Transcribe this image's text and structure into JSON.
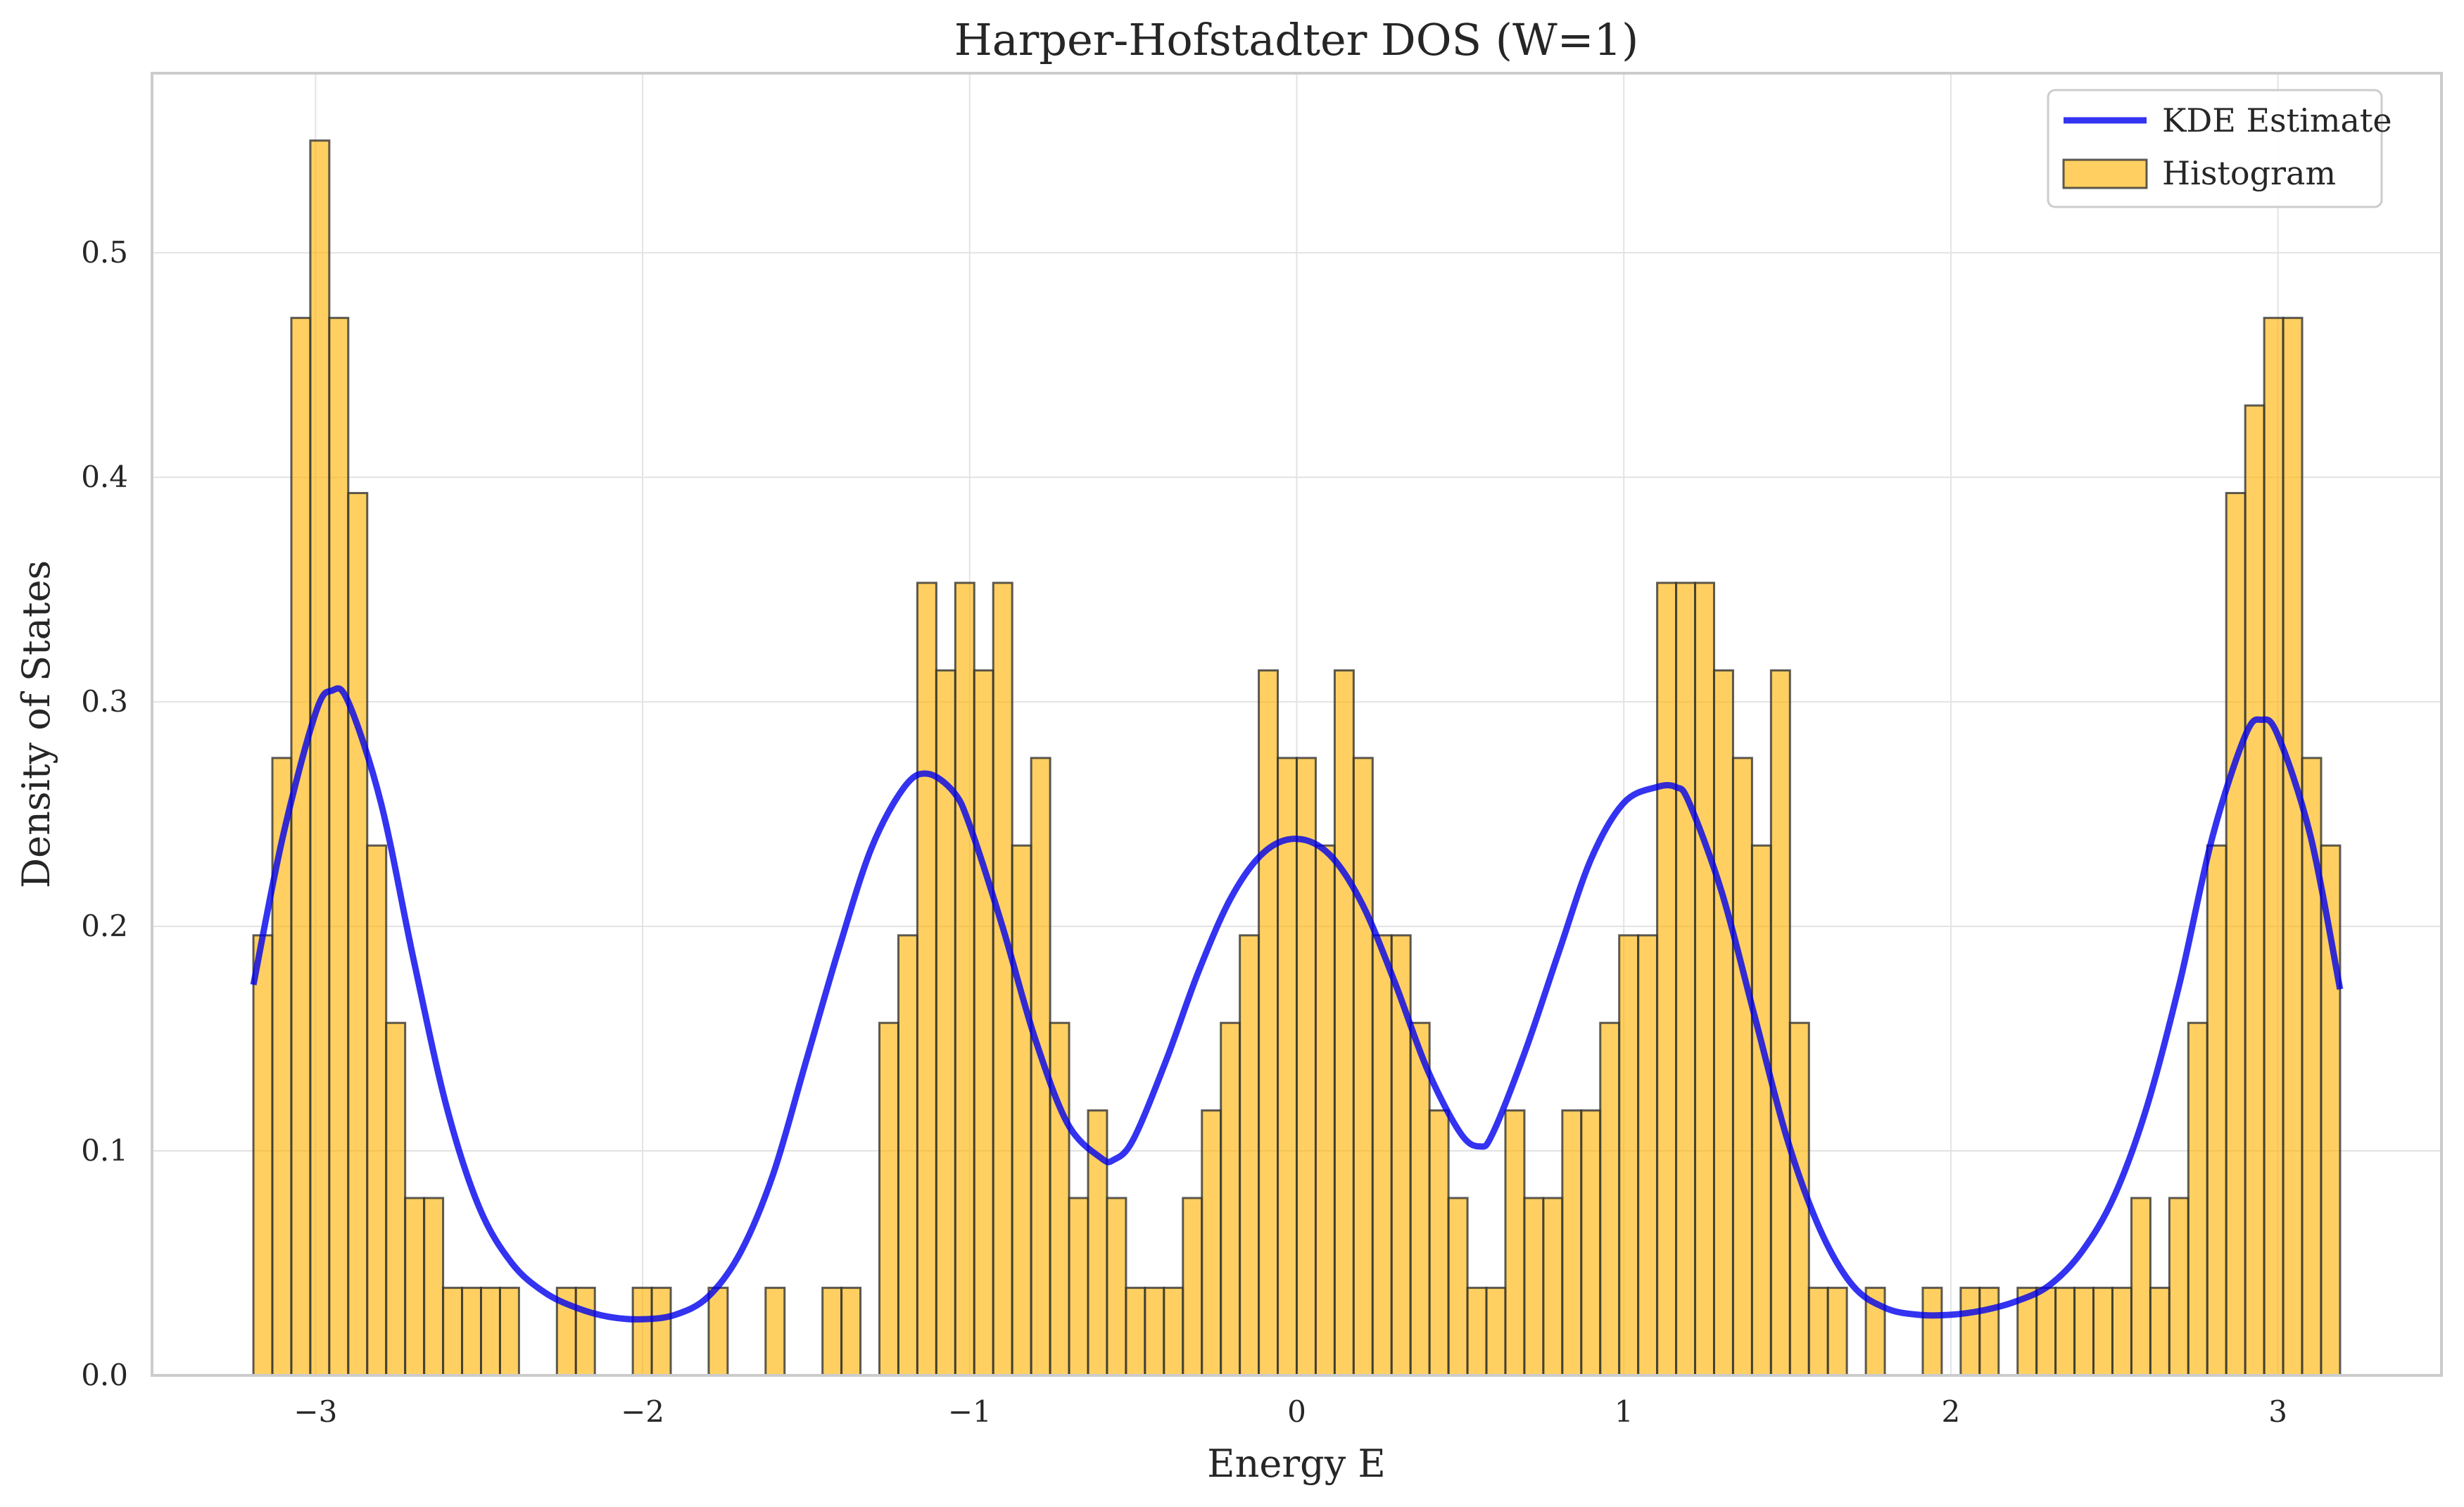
{
  "chart_data": {
    "type": "bar",
    "title": "Harper-Hofstadter DOS (W=1)",
    "xlabel": "Energy E",
    "ylabel": "Density of States",
    "xlim": [
      -3.5,
      3.5
    ],
    "ylim": [
      0,
      0.58
    ],
    "x_ticks": [
      -3,
      -2,
      -1,
      0,
      1,
      2,
      3
    ],
    "x_tick_labels": [
      "−3",
      "−2",
      "−1",
      "0",
      "1",
      "2",
      "3"
    ],
    "y_ticks": [
      0,
      0.1,
      0.2,
      0.3,
      0.4,
      0.5
    ],
    "y_tick_labels": [
      "0.0",
      "0.1",
      "0.2",
      "0.3",
      "0.4",
      "0.5"
    ],
    "grid": true,
    "legend_position": "top-right",
    "bin_range": [
      -3.19,
      3.19
    ],
    "series": [
      {
        "name": "Histogram",
        "type": "histogram",
        "color": "#ffb300",
        "edge_color": "#333333",
        "values": [
          0.196,
          0.275,
          0.471,
          0.55,
          0.471,
          0.393,
          0.236,
          0.157,
          0.079,
          0.079,
          0.039,
          0.039,
          0.039,
          0.039,
          0,
          0,
          0.039,
          0.039,
          0,
          0,
          0.039,
          0.039,
          0,
          0,
          0.039,
          0,
          0,
          0.039,
          0,
          0,
          0.039,
          0.039,
          0,
          0.157,
          0.196,
          0.353,
          0.314,
          0.353,
          0.314,
          0.353,
          0.236,
          0.275,
          0.157,
          0.079,
          0.118,
          0.079,
          0.039,
          0.039,
          0.039,
          0.079,
          0.118,
          0.157,
          0.196,
          0.314,
          0.275,
          0.275,
          0.236,
          0.314,
          0.275,
          0.196,
          0.196,
          0.157,
          0.118,
          0.079,
          0.039,
          0.039,
          0.118,
          0.079,
          0.079,
          0.118,
          0.118,
          0.157,
          0.196,
          0.196,
          0.353,
          0.353,
          0.353,
          0.314,
          0.275,
          0.236,
          0.314,
          0.157,
          0.039,
          0.039,
          0,
          0.039,
          0,
          0,
          0.039,
          0,
          0.039,
          0.039,
          0,
          0.039,
          0.039,
          0.039,
          0.039,
          0.039,
          0.039,
          0.079,
          0.039,
          0.079,
          0.157,
          0.236,
          0.393,
          0.432,
          0.471,
          0.471,
          0.275,
          0.236
        ]
      },
      {
        "name": "KDE Estimate",
        "type": "line",
        "color": "#0000ee",
        "x": [
          -3.19,
          -3.1,
          -3.0,
          -2.95,
          -2.9,
          -2.8,
          -2.7,
          -2.6,
          -2.5,
          -2.4,
          -2.3,
          -2.2,
          -2.1,
          -2.0,
          -1.9,
          -1.8,
          -1.7,
          -1.6,
          -1.5,
          -1.4,
          -1.3,
          -1.2,
          -1.13,
          -1.05,
          -1.0,
          -0.9,
          -0.8,
          -0.7,
          -0.6,
          -0.56,
          -0.5,
          -0.4,
          -0.3,
          -0.2,
          -0.1,
          0.0,
          0.1,
          0.2,
          0.3,
          0.4,
          0.5,
          0.56,
          0.6,
          0.7,
          0.8,
          0.9,
          1.0,
          1.1,
          1.16,
          1.2,
          1.3,
          1.4,
          1.5,
          1.6,
          1.7,
          1.8,
          1.9,
          2.0,
          2.1,
          2.2,
          2.3,
          2.4,
          2.5,
          2.6,
          2.7,
          2.8,
          2.9,
          2.95,
          3.0,
          3.1,
          3.19
        ],
        "y": [
          0.174,
          0.24,
          0.295,
          0.305,
          0.3,
          0.255,
          0.185,
          0.12,
          0.075,
          0.05,
          0.037,
          0.03,
          0.026,
          0.025,
          0.027,
          0.035,
          0.055,
          0.09,
          0.14,
          0.19,
          0.235,
          0.262,
          0.268,
          0.26,
          0.245,
          0.2,
          0.15,
          0.112,
          0.097,
          0.096,
          0.105,
          0.14,
          0.18,
          0.213,
          0.233,
          0.239,
          0.232,
          0.21,
          0.175,
          0.136,
          0.108,
          0.102,
          0.108,
          0.145,
          0.188,
          0.23,
          0.255,
          0.262,
          0.262,
          0.255,
          0.215,
          0.16,
          0.105,
          0.065,
          0.04,
          0.03,
          0.027,
          0.027,
          0.029,
          0.033,
          0.04,
          0.055,
          0.08,
          0.12,
          0.175,
          0.24,
          0.285,
          0.292,
          0.285,
          0.24,
          0.172
        ]
      }
    ]
  }
}
